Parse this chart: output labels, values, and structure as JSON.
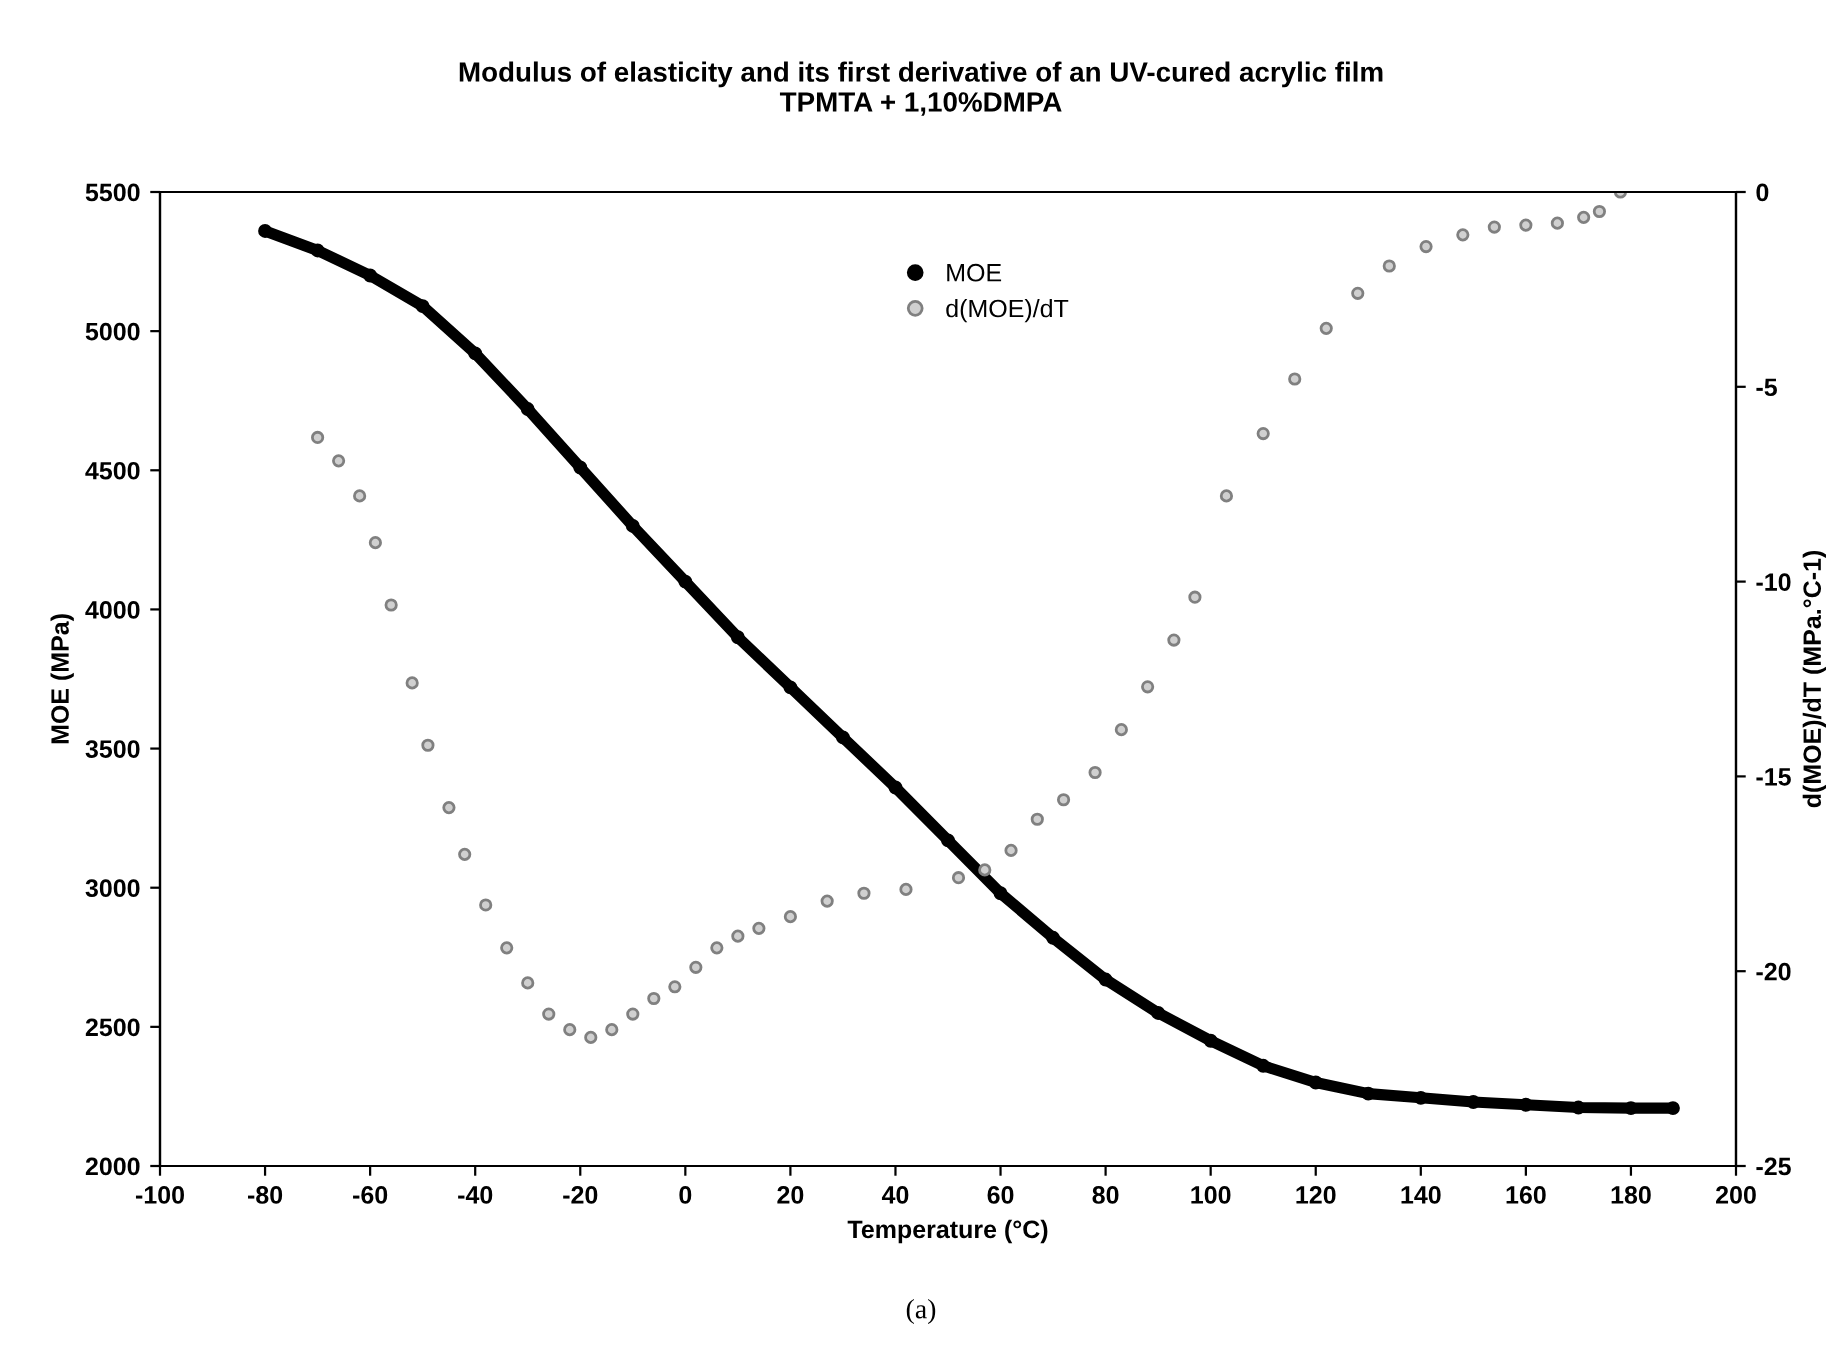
{
  "chart_data": {
    "type": "line",
    "title": "Modulus of elasticity and its first derivative of an UV-cured acrylic film\nTPMTA + 1,10%DMPA",
    "xlabel": "Temperature (°C)",
    "ylabel": "MOE (MPa)",
    "y2label": "d(MOE)/dT (MPa.°C-1)",
    "annotations": [
      "(a)"
    ],
    "xlim": [
      -100,
      200
    ],
    "xticks": [
      -100,
      -80,
      -60,
      -40,
      -20,
      0,
      20,
      40,
      60,
      80,
      100,
      120,
      140,
      160,
      180,
      200
    ],
    "ylim": [
      2000,
      5500
    ],
    "yticks": [
      2000,
      2500,
      3000,
      3500,
      4000,
      4500,
      5000,
      5500
    ],
    "y2lim": [
      -25,
      0
    ],
    "y2ticks": [
      -25,
      -20,
      -15,
      -10,
      -5,
      0
    ],
    "grid": false,
    "legend": "top",
    "marker": "circle",
    "series": [
      {
        "name": "MOE",
        "color": "#000000",
        "x": [
          -80,
          -70,
          -60,
          -50,
          -40,
          -30,
          -20,
          -10,
          0,
          10,
          20,
          30,
          40,
          50,
          60,
          70,
          80,
          90,
          100,
          110,
          120,
          130,
          140,
          150,
          160,
          170,
          180,
          188
        ],
        "values": [
          5360,
          5290,
          5200,
          5090,
          4920,
          4720,
          4510,
          4300,
          4100,
          3900,
          3720,
          3540,
          3360,
          3170,
          2980,
          2820,
          2670,
          2550,
          2450,
          2360,
          2300,
          2260,
          2245,
          2230,
          2220,
          2210,
          2208,
          2208
        ]
      },
      {
        "name": "d(MOE)/dT",
        "type": "scatter",
        "axis": "y2",
        "color": "#808080",
        "x": [
          -70,
          -66,
          -62,
          -59,
          -56,
          -52,
          -49,
          -45,
          -42,
          -38,
          -34,
          -30,
          -26,
          -22,
          -18,
          -14,
          -10,
          -6,
          -2,
          2,
          6,
          10,
          14,
          20,
          27,
          34,
          42,
          52,
          57,
          62,
          67,
          72,
          78,
          83,
          88,
          93,
          97,
          103,
          110,
          116,
          122,
          128,
          134,
          141,
          148,
          154,
          160,
          166,
          171,
          174,
          178
        ],
        "values": [
          -6.3,
          -6.9,
          -7.8,
          -9.0,
          -10.6,
          -12.6,
          -14.2,
          -15.8,
          -17.0,
          -18.3,
          -19.4,
          -20.3,
          -21.1,
          -21.5,
          -21.7,
          -21.5,
          -21.1,
          -20.7,
          -20.4,
          -19.9,
          -19.4,
          -19.1,
          -18.9,
          -18.6,
          -18.2,
          -18.0,
          -17.9,
          -17.6,
          -17.4,
          -16.9,
          -16.1,
          -15.6,
          -14.9,
          -13.8,
          -12.7,
          -11.5,
          -10.4,
          -7.8,
          -6.2,
          -4.8,
          -3.5,
          -2.6,
          -1.9,
          -1.4,
          -1.1,
          -0.9,
          -0.85,
          -0.8,
          -0.65,
          -0.5,
          0
        ]
      }
    ]
  }
}
